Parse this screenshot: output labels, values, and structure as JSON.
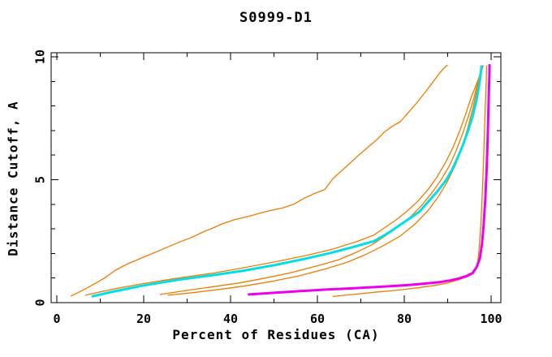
{
  "window": {
    "background": "#ffffff",
    "axis_color": "#000000"
  },
  "chart_data": {
    "type": "line",
    "title": "S0999-D1",
    "xlabel": "Percent of Residues (CA)",
    "ylabel": "Distance Cutoff, A",
    "xlim": [
      0,
      100
    ],
    "ylim": [
      0,
      10
    ],
    "x_ticks_major": [
      0,
      20,
      40,
      60,
      80,
      100
    ],
    "x_tick_labels": [
      "0",
      "20",
      "40",
      "60",
      "80",
      "100"
    ],
    "x_tick_minor_step": 10,
    "y_ticks_major": [
      0,
      5,
      10
    ],
    "y_tick_labels": [
      "0",
      "5",
      "10"
    ],
    "y_tick_minor_step": 1,
    "grid": false,
    "legend": "none",
    "series": [
      {
        "name": "orange-1",
        "color": "#ee7c00",
        "width": 1.3,
        "points": [
          [
            3.2,
            0.26
          ],
          [
            5,
            0.42
          ],
          [
            7,
            0.6
          ],
          [
            9,
            0.8
          ],
          [
            11,
            1.0
          ],
          [
            13.5,
            1.32
          ],
          [
            16,
            1.55
          ],
          [
            19,
            1.78
          ],
          [
            22,
            2.0
          ],
          [
            25,
            2.22
          ],
          [
            28,
            2.45
          ],
          [
            31,
            2.65
          ],
          [
            34,
            2.9
          ],
          [
            35.5,
            3.0
          ],
          [
            38,
            3.2
          ],
          [
            41,
            3.38
          ],
          [
            44,
            3.5
          ],
          [
            47,
            3.65
          ],
          [
            50,
            3.78
          ],
          [
            52,
            3.85
          ],
          [
            54.5,
            4.0
          ],
          [
            57,
            4.25
          ],
          [
            59.5,
            4.45
          ],
          [
            61.7,
            4.6
          ],
          [
            63.6,
            5.05
          ],
          [
            65.5,
            5.35
          ],
          [
            67.3,
            5.64
          ],
          [
            69.5,
            6.0
          ],
          [
            71.5,
            6.3
          ],
          [
            73.5,
            6.6
          ],
          [
            75.5,
            6.95
          ],
          [
            77.5,
            7.2
          ],
          [
            79.1,
            7.36
          ],
          [
            81,
            7.75
          ],
          [
            83,
            8.15
          ],
          [
            85,
            8.6
          ],
          [
            86.5,
            8.95
          ],
          [
            88,
            9.3
          ],
          [
            89.2,
            9.55
          ],
          [
            90,
            9.67
          ]
        ]
      },
      {
        "name": "orange-2",
        "color": "#ee7c00",
        "width": 1.3,
        "points": [
          [
            6.5,
            0.3
          ],
          [
            13,
            0.55
          ],
          [
            20,
            0.78
          ],
          [
            28,
            1.0
          ],
          [
            36,
            1.2
          ],
          [
            43,
            1.42
          ],
          [
            50,
            1.65
          ],
          [
            57,
            1.9
          ],
          [
            63,
            2.15
          ],
          [
            69,
            2.48
          ],
          [
            73,
            2.75
          ],
          [
            75.5,
            3.05
          ],
          [
            78,
            3.35
          ],
          [
            80.5,
            3.7
          ],
          [
            83,
            4.1
          ],
          [
            85.5,
            4.6
          ],
          [
            87.5,
            5.1
          ],
          [
            89.5,
            5.7
          ],
          [
            91.2,
            6.3
          ],
          [
            92.8,
            7.0
          ],
          [
            94.2,
            7.7
          ],
          [
            95.5,
            8.4
          ],
          [
            96.2,
            8.7
          ],
          [
            97.3,
            9.2
          ],
          [
            98.2,
            9.65
          ]
        ]
      },
      {
        "name": "orange-3",
        "color": "#ee7c00",
        "width": 1.3,
        "points": [
          [
            23.7,
            0.33
          ],
          [
            30,
            0.5
          ],
          [
            36,
            0.65
          ],
          [
            42,
            0.8
          ],
          [
            48,
            1.0
          ],
          [
            54,
            1.22
          ],
          [
            60,
            1.5
          ],
          [
            65,
            1.75
          ],
          [
            69,
            2.05
          ],
          [
            72.5,
            2.35
          ],
          [
            75.5,
            2.7
          ],
          [
            78.5,
            3.07
          ],
          [
            81.5,
            3.5
          ],
          [
            84,
            3.95
          ],
          [
            86.5,
            4.5
          ],
          [
            88.5,
            5.0
          ],
          [
            90.5,
            5.6
          ],
          [
            92,
            6.2
          ],
          [
            93.5,
            6.9
          ],
          [
            94.8,
            7.6
          ],
          [
            96,
            8.3
          ],
          [
            97,
            9.0
          ],
          [
            97.9,
            9.65
          ]
        ]
      },
      {
        "name": "orange-4",
        "color": "#ee7c00",
        "width": 1.3,
        "points": [
          [
            25.5,
            0.3
          ],
          [
            32,
            0.42
          ],
          [
            38,
            0.55
          ],
          [
            44,
            0.7
          ],
          [
            50,
            0.88
          ],
          [
            56,
            1.1
          ],
          [
            62,
            1.38
          ],
          [
            67,
            1.65
          ],
          [
            71,
            1.95
          ],
          [
            75,
            2.3
          ],
          [
            79,
            2.7
          ],
          [
            82.5,
            3.2
          ],
          [
            85.5,
            3.75
          ],
          [
            88,
            4.35
          ],
          [
            90,
            4.95
          ],
          [
            91.8,
            5.6
          ],
          [
            93.3,
            6.3
          ],
          [
            94.6,
            7.1
          ],
          [
            95.8,
            7.9
          ],
          [
            96.8,
            8.7
          ],
          [
            97.5,
            9.3
          ],
          [
            98.1,
            9.65
          ]
        ]
      },
      {
        "name": "orange-5",
        "color": "#ee7c00",
        "width": 1.3,
        "points": [
          [
            63.5,
            0.25
          ],
          [
            68,
            0.33
          ],
          [
            73,
            0.42
          ],
          [
            78,
            0.5
          ],
          [
            83,
            0.6
          ],
          [
            87,
            0.7
          ],
          [
            90,
            0.8
          ],
          [
            92.5,
            0.93
          ],
          [
            94.5,
            1.05
          ],
          [
            95.9,
            1.18
          ],
          [
            96.8,
            1.5
          ],
          [
            97.2,
            2.1
          ],
          [
            97.6,
            3.1
          ],
          [
            97.9,
            4.2
          ],
          [
            98.2,
            5.5
          ],
          [
            98.4,
            6.6
          ],
          [
            98.6,
            7.7
          ],
          [
            98.8,
            8.7
          ],
          [
            99.0,
            9.65
          ]
        ]
      },
      {
        "name": "cyan",
        "color": "#00dfe4",
        "width": 3,
        "points": [
          [
            8,
            0.25
          ],
          [
            13,
            0.45
          ],
          [
            20,
            0.7
          ],
          [
            28,
            0.93
          ],
          [
            36,
            1.12
          ],
          [
            43,
            1.3
          ],
          [
            50,
            1.52
          ],
          [
            57,
            1.78
          ],
          [
            63,
            2.02
          ],
          [
            69,
            2.3
          ],
          [
            73,
            2.5
          ],
          [
            76.5,
            2.85
          ],
          [
            78.5,
            3.1
          ],
          [
            81,
            3.4
          ],
          [
            83.5,
            3.7
          ],
          [
            85.5,
            4.1
          ],
          [
            87.5,
            4.5
          ],
          [
            89.5,
            4.95
          ],
          [
            91,
            5.4
          ],
          [
            92.3,
            5.9
          ],
          [
            93.5,
            6.4
          ],
          [
            94.7,
            7.0
          ],
          [
            95.8,
            7.6
          ],
          [
            96.6,
            8.2
          ],
          [
            97.2,
            8.8
          ],
          [
            97.6,
            9.3
          ],
          [
            97.8,
            9.65
          ]
        ]
      },
      {
        "name": "magenta",
        "color": "#ee00ee",
        "width": 3,
        "points": [
          [
            44,
            0.33
          ],
          [
            50,
            0.4
          ],
          [
            56,
            0.47
          ],
          [
            62,
            0.53
          ],
          [
            68,
            0.58
          ],
          [
            73,
            0.63
          ],
          [
            78,
            0.68
          ],
          [
            82,
            0.73
          ],
          [
            85,
            0.78
          ],
          [
            88,
            0.83
          ],
          [
            90.5,
            0.9
          ],
          [
            92.5,
            0.98
          ],
          [
            94.3,
            1.08
          ],
          [
            95.7,
            1.2
          ],
          [
            96.7,
            1.45
          ],
          [
            97.4,
            1.8
          ],
          [
            97.9,
            2.4
          ],
          [
            98.3,
            3.2
          ],
          [
            98.7,
            4.3
          ],
          [
            99.0,
            5.5
          ],
          [
            99.2,
            6.6
          ],
          [
            99.35,
            7.6
          ],
          [
            99.5,
            8.6
          ],
          [
            99.6,
            9.3
          ],
          [
            99.65,
            9.7
          ]
        ]
      }
    ]
  }
}
